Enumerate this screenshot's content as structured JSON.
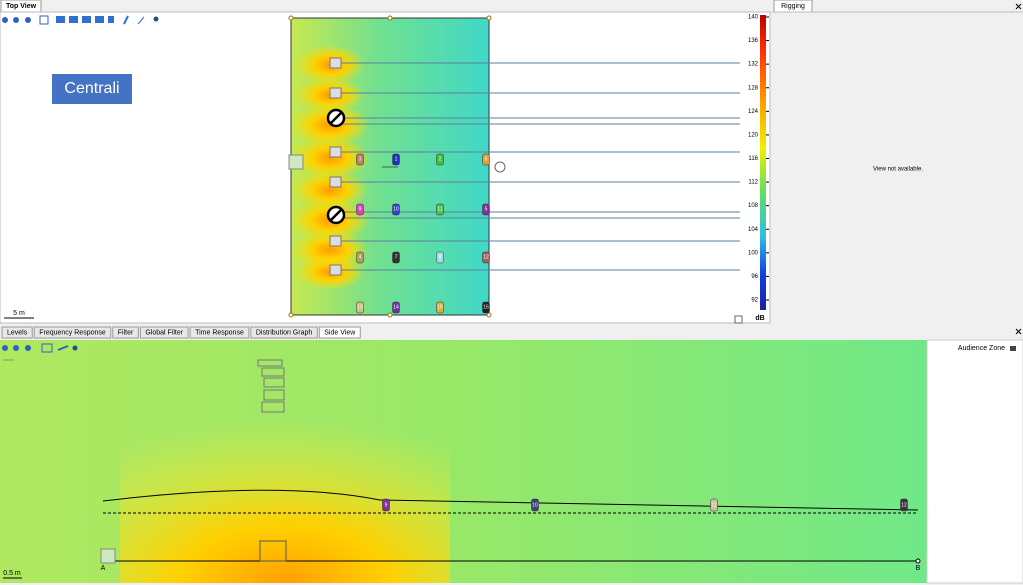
{
  "top_view": {
    "tab": "Top View",
    "label": "Centrali",
    "scale_bar": "5 m",
    "scale": {
      "ticks": [
        140,
        136,
        132,
        128,
        124,
        120,
        116,
        112,
        108,
        104,
        100,
        96,
        92
      ],
      "unit": "dB"
    },
    "mics": [
      [
        "3",
        "1",
        "2",
        "6"
      ],
      [
        "9",
        "10",
        "11",
        "5"
      ],
      [
        "4",
        "7",
        "8",
        "12"
      ],
      [
        "13",
        "14",
        "15",
        "16"
      ]
    ]
  },
  "rigging": {
    "tab": "Rigging",
    "message": "View not available."
  },
  "bottom_tabs": [
    "Levels",
    "Frequency Response",
    "Filter",
    "Global Filter",
    "Time Response",
    "Distribution Graph",
    "Side View"
  ],
  "side_view": {
    "zone": "Audience Zone",
    "scale_bar": "0.5 m",
    "start": "A",
    "end": "B",
    "mics": [
      "9",
      "10",
      "11",
      "12"
    ]
  }
}
